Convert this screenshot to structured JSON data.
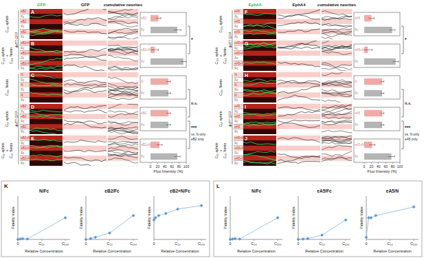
{
  "chart_data": [
    {
      "type": "bar",
      "orientation": "horizontal",
      "categories": [
        "eB2",
        "Fc"
      ],
      "values": [
        22,
        75
      ],
      "errors": [
        7,
        10
      ],
      "colors": [
        "#f4aaa4",
        "#b5b5b5"
      ],
      "xlim": [
        0,
        100
      ],
      "tick_labels": false
    },
    {
      "type": "bar",
      "orientation": "horizontal",
      "categories": [
        "eB2+N",
        "Fc"
      ],
      "values": [
        12,
        92
      ],
      "errors": [
        10,
        8
      ],
      "colors": [
        "#f4aaa4",
        "#b5b5b5"
      ],
      "xlim": [
        0,
        100
      ],
      "tick_labels": false
    },
    {
      "type": "bar",
      "orientation": "horizontal",
      "categories": [
        "N",
        "Fc"
      ],
      "values": [
        50,
        50
      ],
      "errors": [
        6,
        6
      ],
      "colors": [
        "#f4aaa4",
        "#b5b5b5"
      ],
      "xlim": [
        0,
        100
      ],
      "tick_labels": false
    },
    {
      "type": "bar",
      "orientation": "horizontal",
      "categories": [
        "eB2",
        "Fc"
      ],
      "values": [
        50,
        50
      ],
      "errors": [
        6,
        6
      ],
      "colors": [
        "#f4aaa4",
        "#b5b5b5"
      ],
      "xlim": [
        0,
        100
      ],
      "tick_labels": false
    },
    {
      "type": "bar",
      "orientation": "horizontal",
      "categories": [
        "eB2+N",
        "Fc"
      ],
      "values": [
        25,
        75
      ],
      "errors": [
        8,
        8
      ],
      "colors": [
        "#f4aaa4",
        "#b5b5b5"
      ],
      "xlim": [
        0,
        100
      ],
      "xticks": [
        0,
        20,
        40,
        60,
        80,
        100
      ],
      "x_label": "Fluo Intensity (%)"
    },
    {
      "type": "bar",
      "orientation": "horizontal",
      "categories": [
        "eA5",
        "Fc"
      ],
      "values": [
        20,
        78
      ],
      "errors": [
        8,
        8
      ],
      "colors": [
        "#f4aaa4",
        "#b5b5b5"
      ],
      "xlim": [
        0,
        100
      ],
      "tick_labels": false
    },
    {
      "type": "bar",
      "orientation": "horizontal",
      "categories": [
        "eA5+N",
        "Fc"
      ],
      "values": [
        10,
        88
      ],
      "errors": [
        12,
        8
      ],
      "colors": [
        "#f4aaa4",
        "#b5b5b5"
      ],
      "xlim": [
        0,
        100
      ],
      "tick_labels": false
    },
    {
      "type": "bar",
      "orientation": "horizontal",
      "categories": [
        "N",
        "Fc"
      ],
      "values": [
        50,
        50
      ],
      "errors": [
        5,
        5
      ],
      "colors": [
        "#f4aaa4",
        "#b5b5b5"
      ],
      "xlim": [
        0,
        100
      ],
      "tick_labels": false
    },
    {
      "type": "bar",
      "orientation": "horizontal",
      "categories": [
        "eA5",
        "Fc"
      ],
      "values": [
        50,
        50
      ],
      "errors": [
        5,
        5
      ],
      "colors": [
        "#f4aaa4",
        "#b5b5b5"
      ],
      "xlim": [
        0,
        100
      ],
      "tick_labels": false
    },
    {
      "type": "bar",
      "orientation": "horizontal",
      "categories": [
        "eA5+N",
        "Fc"
      ],
      "values": [
        22,
        76
      ],
      "errors": [
        8,
        9
      ],
      "colors": [
        "#f4aaa4",
        "#b5b5b5"
      ],
      "xlim": [
        0,
        100
      ],
      "xticks": [
        0,
        20,
        40,
        60,
        80,
        100
      ],
      "x_label": "Fluo Intensity (%)"
    },
    {
      "type": "line",
      "title": "N/Fc",
      "x": [
        0,
        5,
        10,
        20,
        100
      ],
      "values": [
        0,
        0.01,
        0.02,
        0.01,
        0.5
      ],
      "color": "#5b9bd5",
      "marker": "diamond",
      "xlim": [
        0,
        110
      ],
      "ylim": [
        0,
        1
      ],
      "xticks": [
        0,
        {
          "value": 50,
          "label": "C₅₀"
        },
        {
          "value": 100,
          "label": "C₁₀₀"
        }
      ],
      "tick_labels": "x",
      "x_label": "Relative Concentration",
      "y_label": "Fidelity Index"
    },
    {
      "type": "line",
      "title": "eB2/Fc",
      "x": [
        0,
        10,
        20,
        50,
        100
      ],
      "values": [
        0,
        0.02,
        0.05,
        0.15,
        0.55
      ],
      "color": "#5b9bd5",
      "marker": "diamond",
      "xlim": [
        0,
        110
      ],
      "ylim": [
        0,
        1
      ],
      "xticks": [
        0,
        {
          "value": 50,
          "label": "C₅₀"
        },
        {
          "value": 100,
          "label": "C₁₀₀"
        }
      ],
      "tick_labels": "x",
      "x_label": "Relative Concentration",
      "y_label": "Fidelity Index"
    },
    {
      "type": "line",
      "title": "eB2+N/Fc",
      "x": [
        0,
        3,
        10,
        25,
        50,
        100
      ],
      "values": [
        0.45,
        0.5,
        0.55,
        0.6,
        0.7,
        0.78
      ],
      "color": "#5b9bd5",
      "marker": "diamond",
      "xlim": [
        0,
        110
      ],
      "ylim": [
        0,
        1
      ],
      "xticks": [
        0,
        {
          "value": 50,
          "label": "C₅₀"
        },
        {
          "value": 100,
          "label": "C₁₀₀"
        }
      ],
      "tick_labels": "x",
      "x_label": "Relative Concentration",
      "y_label": "Fidelity Index"
    },
    {
      "type": "line",
      "title": "N/Fc",
      "x": [
        0,
        5,
        10,
        20,
        100
      ],
      "values": [
        0,
        0.01,
        0.02,
        0.01,
        0.5
      ],
      "color": "#5b9bd5",
      "marker": "diamond",
      "xlim": [
        0,
        110
      ],
      "ylim": [
        0,
        1
      ],
      "xticks": [
        0,
        {
          "value": 50,
          "label": "C₅₀"
        },
        {
          "value": 100,
          "label": "C₁₀₀"
        }
      ],
      "tick_labels": "x",
      "x_label": "Relative Concentration",
      "y_label": "Fidelity Index"
    },
    {
      "type": "line",
      "title": "eA5/Fc",
      "x": [
        0,
        10,
        20,
        50,
        100
      ],
      "values": [
        0,
        0.01,
        0.02,
        0.1,
        0.45
      ],
      "color": "#5b9bd5",
      "marker": "diamond",
      "xlim": [
        0,
        110
      ],
      "ylim": [
        0,
        1
      ],
      "xticks": [
        0,
        {
          "value": 50,
          "label": "C₅₀"
        },
        {
          "value": 100,
          "label": "C₁₀₀"
        }
      ],
      "tick_labels": "x",
      "x_label": "Relative Concentration",
      "y_label": "Fidelity Index"
    },
    {
      "type": "line",
      "title": "eA5/N",
      "x": [
        0,
        5,
        10,
        20,
        100
      ],
      "values": [
        0.05,
        0.5,
        0.5,
        0.55,
        0.75
      ],
      "color": "#5b9bd5",
      "marker": "diamond",
      "xlim": [
        0,
        110
      ],
      "ylim": [
        0,
        1
      ],
      "xticks": [
        0,
        {
          "value": 50,
          "label": "C₅₀"
        },
        {
          "value": 100,
          "label": "C₁₀₀"
        }
      ],
      "tick_labels": "x",
      "x_label": "Relative Concentration",
      "y_label": "Fidelity Index"
    }
  ],
  "figure": {
    "halves": [
      {
        "headers": [
          "GFP",
          "GFP",
          "cumulative neurites"
        ],
        "groups": [
          {
            "label": "dnT7 GFP",
            "panels": [
              "A",
              "B"
            ]
          },
          {
            "label": "dnT7 GFP",
            "panels": [
              "C",
              "E"
            ]
          }
        ],
        "rows": [
          {
            "panel": "A",
            "condition": [
              "C₁₀₀ ephrin"
            ],
            "stripes": [
              "eB2",
              "Fc",
              "eB2",
              "Fc",
              "eB2",
              "Fc"
            ]
          },
          {
            "panel": "B",
            "condition": [
              "C₁₀₀ ephrin",
              "+",
              "C₁₀₀ Netrin"
            ],
            "stripes": [
              "eB2+N",
              "Fc",
              "eB2+N",
              "Fc",
              "eB2+N",
              "Fc"
            ]
          },
          {
            "panel": "C",
            "condition": [
              "C₁₀₀ Netrin"
            ],
            "stripes": [
              "N",
              "Fc",
              "N",
              "Fc",
              "N",
              "Fc"
            ]
          },
          {
            "panel": "D",
            "condition": [
              "C₅₀ ephrin"
            ],
            "stripes": [
              "eB2",
              "Fc",
              "eB2",
              "Fc",
              "eB2",
              "Fc"
            ]
          },
          {
            "panel": "E",
            "condition": [
              "C₅₀ ephrin",
              "+",
              "C₅₀ Netrin"
            ],
            "stripes": [
              "eB2+N",
              "Fc",
              "eB2+N",
              "Fc",
              "eB2+N",
              "Fc"
            ]
          }
        ],
        "significance": [
          {
            "label": "*",
            "panels": [
              "A",
              "B"
            ]
          },
          {
            "label": "n.s.",
            "panels": [
              "C",
              "D"
            ]
          },
          {
            "label": "***",
            "panels": [
              "D",
              "E"
            ],
            "note": [
              "vs. N only",
              "eB2 only"
            ]
          }
        ]
      },
      {
        "headers": [
          "EphA5",
          "EphA4",
          "cumulative neurites"
        ],
        "groups": [
          {
            "label": "dnT7 GFP",
            "panels": [
              "F",
              "G"
            ]
          },
          {
            "label": "dnT7 GFP",
            "panels": [
              "H",
              "J"
            ]
          }
        ],
        "rows": [
          {
            "panel": "F",
            "condition": [
              "C₁₀₀ ephrin"
            ],
            "stripes": [
              "eA5",
              "Fc",
              "eA5",
              "Fc",
              "eA5",
              "Fc"
            ]
          },
          {
            "panel": "G",
            "condition": [
              "C₁₀₀ ephrin",
              "+",
              "C₁₀₀ Netrin"
            ],
            "stripes": [
              "eA5+N",
              "Fc",
              "eA5+N",
              "Fc",
              "eA5+N",
              "Fc"
            ]
          },
          {
            "panel": "H",
            "condition": [
              "C₁₀₀ Netrin"
            ],
            "stripes": [
              "N",
              "Fc",
              "N",
              "Fc",
              "N",
              "Fc"
            ]
          },
          {
            "panel": "I",
            "condition": [
              "C₅₀ ephrin"
            ],
            "stripes": [
              "eA5",
              "Fc",
              "eA5",
              "Fc",
              "eA5",
              "Fc"
            ]
          },
          {
            "panel": "J",
            "condition": [
              "C₅₀ ephrin",
              "+",
              "C₅₀ Netrin"
            ],
            "stripes": [
              "eA5+N",
              "Fc",
              "eA5+N",
              "Fc",
              "eA5+N",
              "Fc"
            ]
          }
        ],
        "significance": [
          {
            "label": "*",
            "panels": [
              "F",
              "G"
            ]
          },
          {
            "label": "n.s.",
            "panels": [
              "H",
              "I"
            ]
          },
          {
            "label": "***",
            "panels": [
              "I",
              "J"
            ],
            "note": [
              "vs. N only",
              "eA5 only"
            ]
          }
        ]
      }
    ],
    "bottom_panels": [
      "K",
      "L"
    ]
  }
}
